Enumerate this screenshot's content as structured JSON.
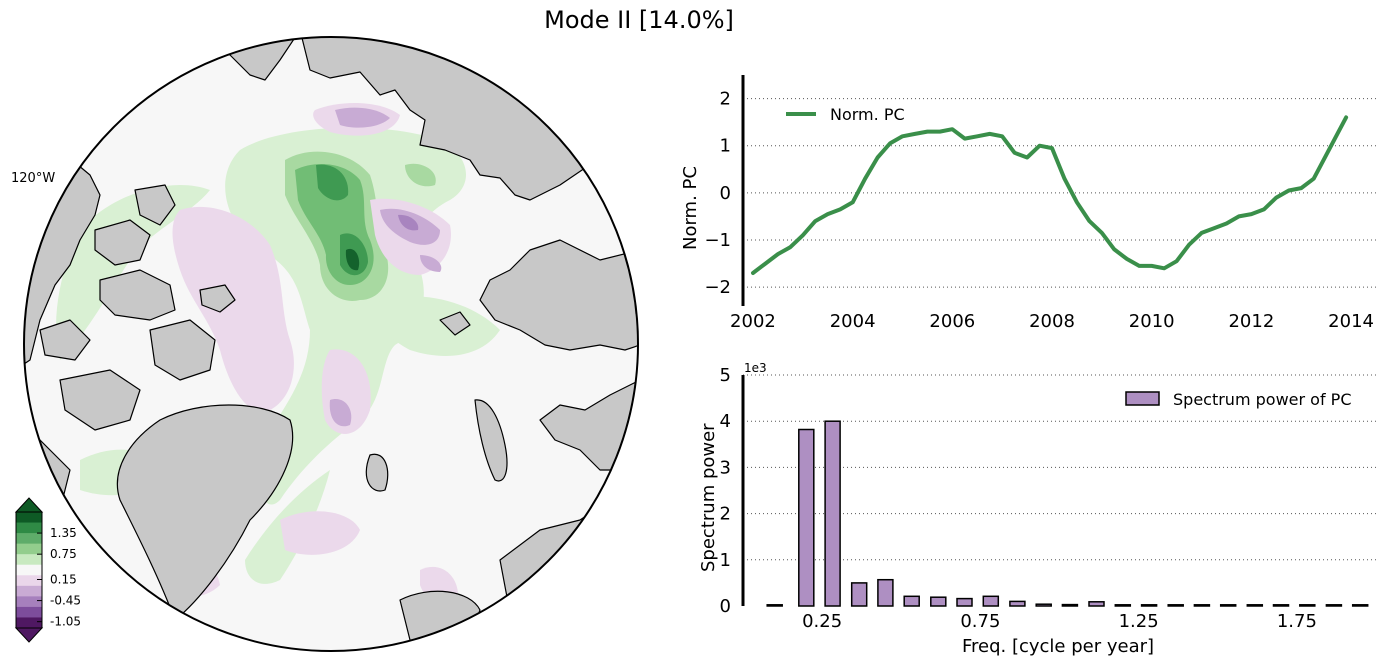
{
  "figure": {
    "title": "Mode II  [14.0%]",
    "colors": {
      "pc_line": "#3a8f4a",
      "bar_fill": "#ae8fc2",
      "land": "#c8c8c8",
      "ocean": "#f7f7f7"
    }
  },
  "map": {
    "lon_label": "120°W",
    "colorbar": {
      "tick_labels": [
        "1.35",
        "0.75",
        "0.15",
        "-0.45",
        "-1.05"
      ],
      "colors": [
        "#0e5a25",
        "#2f8a45",
        "#5fac6a",
        "#93cd8d",
        "#c8e9c0",
        "#f7f7f7",
        "#ead6ea",
        "#c9abd4",
        "#a680bd",
        "#7d4d9c",
        "#4f1862"
      ]
    }
  },
  "chart_data": [
    {
      "type": "line",
      "ylabel": "Norm. PC",
      "xlim": [
        2001.8,
        2014.5
      ],
      "ylim": [
        -2.4,
        2.5
      ],
      "xticks": [
        2002,
        2004,
        2006,
        2008,
        2010,
        2012,
        2014
      ],
      "xtick_labels": [
        "2002",
        "2004",
        "2006",
        "2008",
        "2010",
        "2012",
        "2014"
      ],
      "yticks": [
        -2,
        -1,
        0,
        1,
        2
      ],
      "ytick_labels": [
        "−2",
        "−1",
        "0",
        "1",
        "2"
      ],
      "grid": "y-dotted",
      "legend": "top-left",
      "series": [
        {
          "name": "Norm. PC",
          "x": [
            2002.0,
            2002.25,
            2002.5,
            2002.75,
            2003.0,
            2003.25,
            2003.5,
            2003.75,
            2004.0,
            2004.25,
            2004.5,
            2004.75,
            2005.0,
            2005.25,
            2005.5,
            2005.75,
            2006.0,
            2006.25,
            2006.5,
            2006.75,
            2007.0,
            2007.25,
            2007.5,
            2007.75,
            2008.0,
            2008.25,
            2008.5,
            2008.75,
            2009.0,
            2009.25,
            2009.5,
            2009.75,
            2010.0,
            2010.25,
            2010.5,
            2010.75,
            2011.0,
            2011.25,
            2011.5,
            2011.75,
            2012.0,
            2012.25,
            2012.5,
            2012.75,
            2013.0,
            2013.25,
            2013.5,
            2013.75,
            2013.9
          ],
          "y": [
            -1.7,
            -1.5,
            -1.3,
            -1.15,
            -0.9,
            -0.6,
            -0.45,
            -0.35,
            -0.2,
            0.3,
            0.75,
            1.05,
            1.2,
            1.25,
            1.3,
            1.3,
            1.35,
            1.15,
            1.2,
            1.25,
            1.2,
            0.85,
            0.75,
            1.0,
            0.95,
            0.3,
            -0.2,
            -0.6,
            -0.85,
            -1.2,
            -1.4,
            -1.55,
            -1.55,
            -1.6,
            -1.45,
            -1.1,
            -0.85,
            -0.75,
            -0.65,
            -0.5,
            -0.45,
            -0.35,
            -0.1,
            0.05,
            0.1,
            0.3,
            0.8,
            1.3,
            1.6
          ]
        }
      ]
    },
    {
      "type": "bar",
      "xlabel": "Freq. [cycle per year]",
      "ylabel": "Spectrum power",
      "offset_text": "1e3",
      "xlim": [
        0.0,
        2.0
      ],
      "ylim": [
        0,
        5
      ],
      "xticks": [
        0.25,
        0.75,
        1.25,
        1.75
      ],
      "xtick_labels": [
        "0.25",
        "0.75",
        "1.25",
        "1.75"
      ],
      "yticks": [
        0,
        1,
        2,
        3,
        4,
        5
      ],
      "ytick_labels": [
        "0",
        "1",
        "2",
        "3",
        "4",
        "5"
      ],
      "grid": "y-dotted",
      "legend": "top-right",
      "series": [
        {
          "name": "Spectrum power of PC",
          "x": [
            0.1,
            0.2,
            0.283,
            0.367,
            0.45,
            0.533,
            0.617,
            0.7,
            0.783,
            0.867,
            0.95,
            1.033,
            1.117,
            1.2,
            1.283,
            1.367,
            1.45,
            1.533,
            1.617,
            1.7,
            1.783,
            1.867,
            1.95
          ],
          "values": [
            0.0,
            3.82,
            4.0,
            0.5,
            0.57,
            0.21,
            0.19,
            0.16,
            0.21,
            0.1,
            0.04,
            0.03,
            0.09,
            0.02,
            0.02,
            0.02,
            0.02,
            0.01,
            0.02,
            0.02,
            0.01,
            0.01,
            0.01
          ]
        }
      ]
    }
  ]
}
